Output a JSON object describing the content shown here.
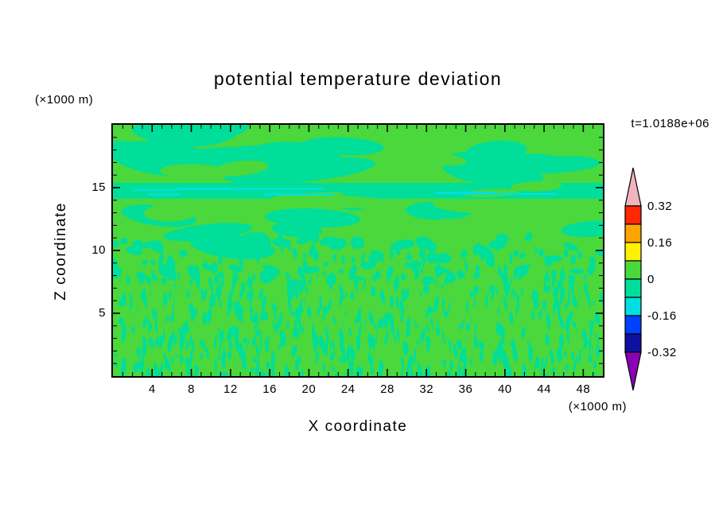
{
  "title": "potential temperature deviation",
  "time_label": "t=1.0188e+06",
  "axes": {
    "x": {
      "label": "X coordinate",
      "unit_label": "(×1000 m)",
      "ticks": [
        4,
        8,
        12,
        16,
        20,
        24,
        28,
        32,
        36,
        40,
        44,
        48
      ]
    },
    "z": {
      "label": "Z coordinate",
      "unit_label": "(×1000 m)",
      "ticks": [
        5,
        10,
        15
      ]
    }
  },
  "colorbar": {
    "tick_labels": [
      "0.32",
      "0.16",
      "0",
      "-0.16",
      "-0.32"
    ],
    "over_range_arrow_color": "#F2B3C0",
    "under_range_arrow_color": "#8B00B3",
    "bands_top_to_bottom": [
      {
        "name": "0.24 to 0.32",
        "color": "#FF2800"
      },
      {
        "name": "0.16 to 0.24",
        "color": "#FFA400"
      },
      {
        "name": "0.08 to 0.16",
        "color": "#FFF200"
      },
      {
        "name": "0 to 0.08",
        "color": "#4BD83C"
      },
      {
        "name": "-0.08 to 0",
        "color": "#00DE9A"
      },
      {
        "name": "-0.16 to -0.08",
        "color": "#00E0E0"
      },
      {
        "name": "-0.24 to -0.16",
        "color": "#0041FF"
      },
      {
        "name": "-0.32 to -0.24",
        "color": "#1010A0"
      }
    ]
  },
  "field": {
    "background_color": "#4BD83C",
    "negative_blob_color": "#00DE9A",
    "streak_color": "#00E0E0"
  },
  "chart_data": {
    "type": "heatmap",
    "title": "potential temperature deviation",
    "xlabel": "X coordinate",
    "ylabel": "Z coordinate",
    "x_unit": "×1000 m",
    "y_unit": "×1000 m",
    "xlim": [
      0,
      50
    ],
    "ylim": [
      0,
      20
    ],
    "x_ticks": [
      4,
      8,
      12,
      16,
      20,
      24,
      28,
      32,
      36,
      40,
      44,
      48
    ],
    "y_ticks": [
      5,
      10,
      15
    ],
    "time_label": "t=1.0188e+06",
    "contour_interval": 0.08,
    "levels": [
      -0.32,
      -0.24,
      -0.16,
      -0.08,
      0,
      0.08,
      0.16,
      0.24,
      0.32
    ],
    "colorbar_labels": [
      0.32,
      0.16,
      0,
      -0.16,
      -0.32
    ],
    "legend_position": "right",
    "grid": false,
    "description": "Filled contours of potential temperature deviation on an X-Z cross-section at t=1.0188e+06. Values lie almost entirely within -0.08 to +0.08: a yellow-green field (0 to 0.08) with spring-green patches (-0.08 to 0), thin cyan filaments (-0.16 to -0.08) concentrated in a layer near z=14-15 km, smooth large-scale blobs above z=10 km, and fine vertical convective streaks below z=8 km."
  }
}
